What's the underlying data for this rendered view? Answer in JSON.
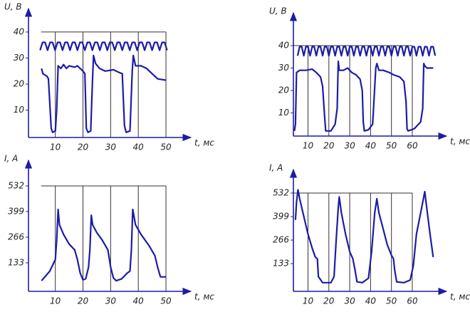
{
  "chart_data": [
    {
      "type": "line",
      "ylabel": "U, B",
      "xlabel": "t, мс",
      "xlim": [
        0.3,
        59
      ],
      "ylim": [
        -0.5,
        49
      ],
      "xticks": [
        10,
        20,
        30,
        40,
        50
      ],
      "yticks": [
        10,
        20,
        30,
        40
      ],
      "grid": true,
      "series": [
        {
          "color": "#1c1ca8",
          "x": [
            4.5,
            5.4,
            6.3,
            7.2,
            8.1,
            9,
            9.9,
            10.8,
            11.7,
            12.6,
            13.5,
            14.4,
            15.3,
            16.2,
            17.1,
            18,
            18.9,
            19.8,
            20.7,
            21.6,
            22.5,
            23.4,
            24.3,
            25.2,
            26.1,
            27,
            27.9,
            28.8,
            29.7,
            30.6,
            31.5,
            32.4,
            33.3,
            34.2,
            35.1,
            36,
            36.9,
            37.8,
            38.7,
            39.6,
            40.5,
            41.4,
            42.3,
            43.2,
            44.1,
            45,
            45.9,
            46.8,
            47.7,
            48.6,
            49.5,
            50.4
          ],
          "values": [
            33,
            36,
            36,
            33,
            36,
            36,
            33,
            36,
            36,
            33,
            36,
            36,
            33,
            36,
            36,
            33,
            36,
            36,
            33,
            36,
            36,
            33,
            36,
            36,
            33,
            36,
            36,
            33,
            36,
            36,
            33,
            36,
            36,
            33,
            36,
            36,
            33,
            36,
            36,
            33,
            36,
            36,
            33,
            36,
            36,
            33,
            36,
            36,
            33,
            36,
            36,
            33
          ]
        },
        {
          "color": "#1c1ca8",
          "x": [
            5,
            5.5,
            7,
            7.5,
            8.5,
            9,
            10,
            10.5,
            11,
            12,
            13,
            14,
            15,
            17,
            18,
            20,
            20.7,
            21.2,
            21.8,
            22.8,
            23.4,
            23.8,
            24.5,
            26,
            28,
            31,
            33,
            34.2,
            35,
            35.6,
            37,
            37.8,
            38.2,
            39,
            41,
            43,
            44,
            46,
            47,
            50
          ],
          "values": [
            26,
            24,
            23,
            22,
            3,
            1.5,
            2,
            10,
            27,
            26,
            27.5,
            26,
            27,
            26.5,
            27,
            25,
            24,
            3,
            1.5,
            2,
            20,
            31,
            28,
            26,
            25,
            25.5,
            24.5,
            24,
            4,
            1.5,
            2,
            25,
            31,
            27,
            27,
            26,
            25,
            23,
            22,
            21.5
          ]
        }
      ]
    },
    {
      "type": "line",
      "ylabel": "U, B",
      "xlabel": "t, мс",
      "xlim": [
        3,
        76.4
      ],
      "ylim": [
        -0.3,
        54.6
      ],
      "xticks": [
        10,
        20,
        30,
        40,
        50,
        60
      ],
      "yticks": [
        10,
        20,
        30,
        40
      ],
      "grid": true,
      "series": [
        {
          "color": "#1c1ca8",
          "x": [
            5,
            6,
            7,
            8,
            9,
            10,
            11,
            12,
            13,
            14,
            15,
            16,
            17,
            18,
            19,
            20,
            21,
            22,
            23,
            24,
            25,
            26,
            27,
            28,
            29,
            30,
            31,
            32,
            33,
            34,
            35,
            36,
            37,
            38,
            39,
            40,
            41,
            42,
            43,
            44,
            45,
            46,
            47,
            48,
            49,
            50,
            51,
            52,
            53,
            54,
            55,
            56,
            57,
            58,
            59,
            60,
            61,
            62,
            63,
            64,
            65,
            66,
            67,
            68,
            69,
            70,
            71
          ],
          "values": [
            35.5,
            39.5,
            39.5,
            35.5,
            39.5,
            39.5,
            35.5,
            39.5,
            39.5,
            35.5,
            39.5,
            39.5,
            35.5,
            39.5,
            39.5,
            35.5,
            39.5,
            39.5,
            35.5,
            39.5,
            39.5,
            35.5,
            39.5,
            39.5,
            35.5,
            39.5,
            39.5,
            35.5,
            39.5,
            39.5,
            35.5,
            39.5,
            39.5,
            35.5,
            39.5,
            39.5,
            35.5,
            39.5,
            39.5,
            35.5,
            39.5,
            39.5,
            35.5,
            39.5,
            39.5,
            35.5,
            39.5,
            39.5,
            35.5,
            39.5,
            39.5,
            35.5,
            39.5,
            39.5,
            35.5,
            39.5,
            39.5,
            35.5,
            39.5,
            39.5,
            35.5,
            39.5,
            39.5,
            35.5,
            39.5,
            39.5,
            35.5
          ]
        },
        {
          "color": "#1c1ca8",
          "x": [
            3.5,
            4,
            4.5,
            6,
            9,
            12,
            14,
            16,
            17,
            18,
            18.5,
            21,
            23,
            24,
            24.5,
            25,
            27,
            29,
            31,
            33,
            35,
            36,
            36.5,
            37,
            39,
            41,
            42.5,
            43,
            44,
            46,
            49,
            51,
            54,
            56,
            57,
            57.5,
            58,
            61,
            64,
            65,
            65.5,
            66,
            67,
            70
          ],
          "values": [
            2,
            5,
            28,
            29,
            29,
            29.5,
            28,
            26,
            22,
            8,
            2,
            2,
            5,
            12,
            33,
            29,
            29,
            30,
            28,
            27,
            25,
            20,
            6,
            2,
            2.5,
            5,
            30,
            32,
            29,
            29,
            28,
            27,
            26,
            24,
            15,
            3,
            2,
            3,
            6,
            12,
            32,
            31,
            30,
            30
          ]
        }
      ]
    },
    {
      "type": "line",
      "ylabel": "I, A",
      "xlabel": "t, мс",
      "xlim": [
        0.3,
        59
      ],
      "ylim": [
        -15,
        665
      ],
      "xticks": [
        10,
        20,
        30,
        40,
        50
      ],
      "yticks": [
        133,
        266,
        399,
        532
      ],
      "grid": true,
      "series": [
        {
          "color": "#1c1ca8",
          "x": [
            5,
            8,
            10,
            10.5,
            11,
            11.5,
            13,
            15,
            17,
            18,
            19,
            20,
            21,
            22,
            22.5,
            23,
            23.5,
            25,
            27,
            29,
            30,
            31,
            32,
            34,
            36,
            37,
            37.5,
            38,
            39,
            41,
            44,
            46,
            47,
            48,
            50
          ],
          "values": [
            40,
            90,
            150,
            250,
            410,
            330,
            280,
            230,
            200,
            150,
            80,
            45,
            50,
            110,
            200,
            380,
            330,
            290,
            250,
            200,
            110,
            55,
            40,
            50,
            80,
            90,
            200,
            410,
            330,
            280,
            220,
            170,
            110,
            60,
            60
          ]
        }
      ]
    },
    {
      "type": "line",
      "ylabel": "I, A",
      "xlabel": "t, мс",
      "xlim": [
        3,
        76.4
      ],
      "ylim": [
        -24,
        665
      ],
      "xticks": [
        10,
        20,
        30,
        40,
        50,
        60
      ],
      "yticks": [
        133,
        266,
        399,
        532
      ],
      "grid": true,
      "series": [
        {
          "color": "#1c1ca8",
          "x": [
            4,
            4.5,
            5.2,
            6,
            8,
            10,
            12,
            13.5,
            14.5,
            15,
            17,
            21,
            22.5,
            23.5,
            24.5,
            25,
            26,
            28,
            30,
            31.5,
            32.5,
            33.5,
            36,
            39,
            40.5,
            42,
            43,
            44,
            46,
            48,
            50,
            51,
            51.5,
            52.5,
            56,
            59,
            60.5,
            62,
            64,
            66,
            67,
            68.5,
            70
          ],
          "values": [
            380,
            480,
            550,
            500,
            400,
            300,
            220,
            170,
            160,
            60,
            25,
            25,
            60,
            260,
            450,
            510,
            420,
            300,
            200,
            160,
            100,
            30,
            25,
            50,
            200,
            420,
            500,
            420,
            330,
            240,
            180,
            160,
            100,
            30,
            25,
            40,
            120,
            300,
            420,
            540,
            440,
            300,
            170
          ]
        }
      ]
    }
  ]
}
